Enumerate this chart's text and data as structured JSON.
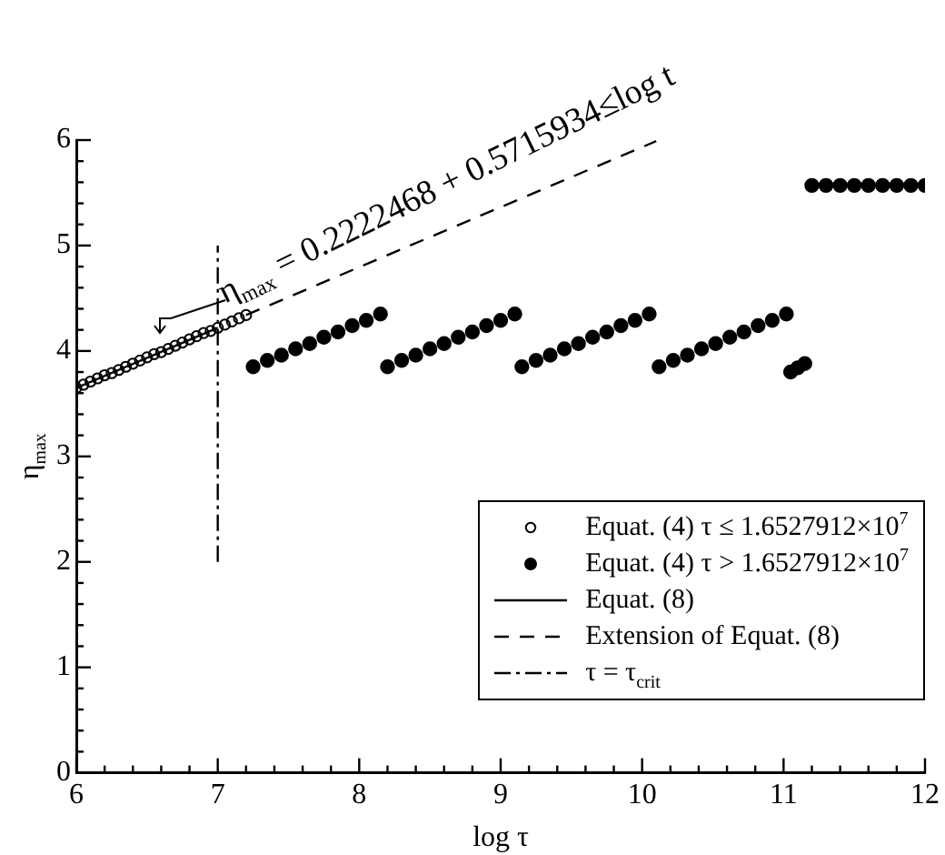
{
  "chart_data": {
    "type": "scatter",
    "xlabel": "log τ",
    "ylabel": "η$_{max}$",
    "xlim": [
      6,
      12
    ],
    "ylim": [
      0,
      6
    ],
    "xticks": [
      6,
      {
        "value": 6.2,
        "label": null
      },
      {
        "value": 6.4,
        "label": null
      },
      {
        "value": 6.6,
        "label": null
      },
      {
        "value": 6.8,
        "label": null
      },
      7,
      {
        "value": 7.2,
        "label": null
      },
      {
        "value": 7.4,
        "label": null
      },
      {
        "value": 7.6,
        "label": null
      },
      {
        "value": 7.8,
        "label": null
      },
      8,
      {
        "value": 8.2,
        "label": null
      },
      {
        "value": 8.4,
        "label": null
      },
      {
        "value": 8.6,
        "label": null
      },
      {
        "value": 8.8,
        "label": null
      },
      9,
      {
        "value": 9.2,
        "label": null
      },
      {
        "value": 9.4,
        "label": null
      },
      {
        "value": 9.6,
        "label": null
      },
      {
        "value": 9.8,
        "label": null
      },
      10,
      {
        "value": 10.2,
        "label": null
      },
      {
        "value": 10.4,
        "label": null
      },
      {
        "value": 10.6,
        "label": null
      },
      {
        "value": 10.8,
        "label": null
      },
      11,
      {
        "value": 11.2,
        "label": null
      },
      {
        "value": 11.4,
        "label": null
      },
      {
        "value": 11.6,
        "label": null
      },
      {
        "value": 11.8,
        "label": null
      },
      12
    ],
    "yticks": [
      0,
      {
        "value": 0.2,
        "label": null
      },
      {
        "value": 0.4,
        "label": null
      },
      {
        "value": 0.6,
        "label": null
      },
      {
        "value": 0.8,
        "label": null
      },
      1,
      {
        "value": 1.2,
        "label": null
      },
      {
        "value": 1.4,
        "label": null
      },
      {
        "value": 1.6,
        "label": null
      },
      {
        "value": 1.8,
        "label": null
      },
      2,
      {
        "value": 2.2,
        "label": null
      },
      {
        "value": 2.4,
        "label": null
      },
      {
        "value": 2.6,
        "label": null
      },
      {
        "value": 2.8,
        "label": null
      },
      3,
      {
        "value": 3.2,
        "label": null
      },
      {
        "value": 3.4,
        "label": null
      },
      {
        "value": 3.6,
        "label": null
      },
      {
        "value": 3.8,
        "label": null
      },
      4,
      {
        "value": 4.2,
        "label": null
      },
      {
        "value": 4.4,
        "label": null
      },
      {
        "value": 4.6,
        "label": null
      },
      {
        "value": 4.8,
        "label": null
      },
      5,
      {
        "value": 5.2,
        "label": null
      },
      {
        "value": 5.4,
        "label": null
      },
      {
        "value": 5.6,
        "label": null
      },
      {
        "value": 5.8,
        "label": null
      },
      6
    ],
    "grid": false,
    "legend": "bottom right",
    "annotations": [
      {
        "text": "η$_{max}$ = 0.2222468 + 0.5715934≤log t",
        "x": 7.05,
        "y": 4.45
      }
    ],
    "series": [
      {
        "name": "Equat. (4) τ ≤ 1.6527912×10$^{7}$",
        "marker": "circle-open",
        "color": "#000000",
        "x": [
          6.0,
          6.05,
          6.1,
          6.15,
          6.2,
          6.25,
          6.3,
          6.35,
          6.4,
          6.45,
          6.5,
          6.55,
          6.6,
          6.65,
          6.7,
          6.75,
          6.8,
          6.85,
          6.9,
          6.95,
          7.0,
          7.05,
          7.1,
          7.15,
          7.2
        ],
        "values": [
          3.65,
          3.68,
          3.71,
          3.74,
          3.77,
          3.79,
          3.82,
          3.85,
          3.88,
          3.91,
          3.94,
          3.97,
          3.99,
          4.02,
          4.05,
          4.08,
          4.11,
          4.14,
          4.17,
          4.19,
          4.22,
          4.25,
          4.28,
          4.31,
          4.34
        ]
      },
      {
        "name": "Equat. (4) τ > 1.6527912×10$^{7}$",
        "marker": "circle",
        "color": "#000000",
        "x": [
          7.25,
          7.35,
          7.45,
          7.55,
          7.65,
          7.75,
          7.85,
          7.95,
          8.05,
          8.15,
          8.2,
          8.3,
          8.4,
          8.5,
          8.6,
          8.7,
          8.8,
          8.9,
          9.0,
          9.1,
          9.15,
          9.25,
          9.35,
          9.45,
          9.55,
          9.65,
          9.75,
          9.85,
          9.95,
          10.05,
          10.12,
          10.22,
          10.32,
          10.42,
          10.52,
          10.62,
          10.72,
          10.82,
          10.92,
          11.02,
          11.05,
          11.1,
          11.15,
          11.2,
          11.3,
          11.4,
          11.5,
          11.6,
          11.7,
          11.8,
          11.9,
          12.0
        ],
        "values": [
          3.85,
          3.91,
          3.96,
          4.02,
          4.07,
          4.13,
          4.18,
          4.24,
          4.29,
          4.35,
          3.85,
          3.91,
          3.96,
          4.02,
          4.07,
          4.13,
          4.18,
          4.24,
          4.29,
          4.35,
          3.85,
          3.91,
          3.96,
          4.02,
          4.07,
          4.13,
          4.18,
          4.24,
          4.29,
          4.35,
          3.85,
          3.91,
          3.96,
          4.02,
          4.07,
          4.13,
          4.18,
          4.24,
          4.29,
          4.35,
          3.8,
          3.84,
          3.88,
          5.57,
          5.57,
          5.57,
          5.57,
          5.57,
          5.57,
          5.57,
          5.57,
          5.57
        ]
      },
      {
        "name": "Equat. (8)",
        "type": "line",
        "line_style": "solid",
        "color": "#000000",
        "x": [
          6,
          7
        ],
        "values": [
          3.65,
          4.22
        ]
      },
      {
        "name": "Extension of Equat. (8)",
        "type": "line",
        "line_style": "dashed",
        "color": "#000000",
        "x": [
          7.2,
          10.1
        ],
        "values": [
          4.34,
          5.99
        ]
      },
      {
        "name": "τ = τ$_{crit}$",
        "type": "line",
        "line_style": "dashdot",
        "color": "#000000",
        "x": [
          7,
          7
        ],
        "values": [
          2,
          5
        ]
      }
    ]
  }
}
